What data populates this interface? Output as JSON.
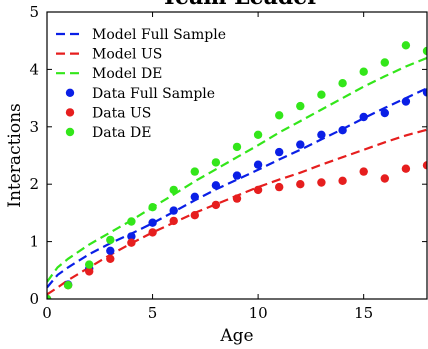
{
  "chart_data": {
    "type": "line",
    "title": "Team Leader",
    "xlabel": "Age",
    "ylabel": "Interactions",
    "xlim": [
      0,
      18
    ],
    "ylim": [
      0,
      5
    ],
    "xticks": [
      0,
      5,
      10,
      15
    ],
    "yticks": [
      0,
      1,
      2,
      3,
      4,
      5
    ],
    "grid": false,
    "legend_position": "top-left",
    "series": [
      {
        "name": "Model Full Sample",
        "kind": "line",
        "style": "dashed",
        "color": "#0a1fe6",
        "x": [
          0,
          0.5,
          1,
          2,
          3,
          4,
          5,
          6,
          7,
          8,
          9,
          10,
          11,
          12,
          13,
          14,
          15,
          16,
          17,
          18
        ],
        "y": [
          0.2,
          0.42,
          0.55,
          0.78,
          0.97,
          1.14,
          1.32,
          1.52,
          1.72,
          1.91,
          2.08,
          2.25,
          2.43,
          2.6,
          2.78,
          2.96,
          3.15,
          3.33,
          3.5,
          3.67
        ]
      },
      {
        "name": "Model US",
        "kind": "line",
        "style": "dashed",
        "color": "#e61e1e",
        "x": [
          0,
          0.5,
          1,
          2,
          3,
          4,
          5,
          6,
          7,
          8,
          9,
          10,
          11,
          12,
          13,
          14,
          15,
          16,
          17,
          18
        ],
        "y": [
          0.08,
          0.2,
          0.33,
          0.55,
          0.77,
          0.97,
          1.16,
          1.33,
          1.5,
          1.65,
          1.8,
          1.95,
          2.08,
          2.2,
          2.34,
          2.47,
          2.6,
          2.73,
          2.85,
          2.95
        ]
      },
      {
        "name": "Model DE",
        "kind": "line",
        "style": "dashed",
        "color": "#33e61a",
        "x": [
          0,
          0.5,
          1,
          2,
          3,
          4,
          5,
          6,
          7,
          8,
          9,
          10,
          11,
          12,
          13,
          14,
          15,
          16,
          17,
          18
        ],
        "y": [
          0.3,
          0.55,
          0.7,
          0.95,
          1.16,
          1.37,
          1.6,
          1.82,
          2.05,
          2.26,
          2.47,
          2.68,
          2.9,
          3.1,
          3.3,
          3.5,
          3.7,
          3.88,
          4.05,
          4.2
        ]
      },
      {
        "name": "Data Full Sample",
        "kind": "scatter",
        "color": "#0a1fe6",
        "x": [
          0,
          1,
          2,
          3,
          4,
          5,
          6,
          7,
          8,
          9,
          10,
          11,
          12,
          13,
          14,
          15,
          16,
          17,
          18
        ],
        "y": [
          0,
          0.25,
          0.53,
          0.84,
          1.09,
          1.33,
          1.54,
          1.78,
          1.98,
          2.15,
          2.34,
          2.56,
          2.69,
          2.86,
          2.94,
          3.17,
          3.24,
          3.44,
          3.6
        ]
      },
      {
        "name": "Data US",
        "kind": "scatter",
        "color": "#e61e1e",
        "x": [
          0,
          1,
          2,
          3,
          4,
          5,
          6,
          7,
          8,
          9,
          10,
          11,
          12,
          13,
          14,
          15,
          16,
          17,
          18
        ],
        "y": [
          0,
          0.24,
          0.48,
          0.7,
          0.98,
          1.16,
          1.36,
          1.46,
          1.64,
          1.75,
          1.9,
          1.95,
          2.0,
          2.03,
          2.06,
          2.22,
          2.1,
          2.27,
          2.33
        ]
      },
      {
        "name": "Data DE",
        "kind": "scatter",
        "color": "#33e61a",
        "x": [
          0,
          1,
          2,
          3,
          4,
          5,
          6,
          7,
          8,
          9,
          10,
          11,
          12,
          13,
          14,
          15,
          16,
          17,
          18
        ],
        "y": [
          0,
          0.24,
          0.6,
          1.03,
          1.35,
          1.6,
          1.9,
          2.22,
          2.38,
          2.65,
          2.86,
          3.2,
          3.36,
          3.56,
          3.76,
          3.96,
          4.12,
          4.42,
          4.32
        ]
      }
    ]
  }
}
